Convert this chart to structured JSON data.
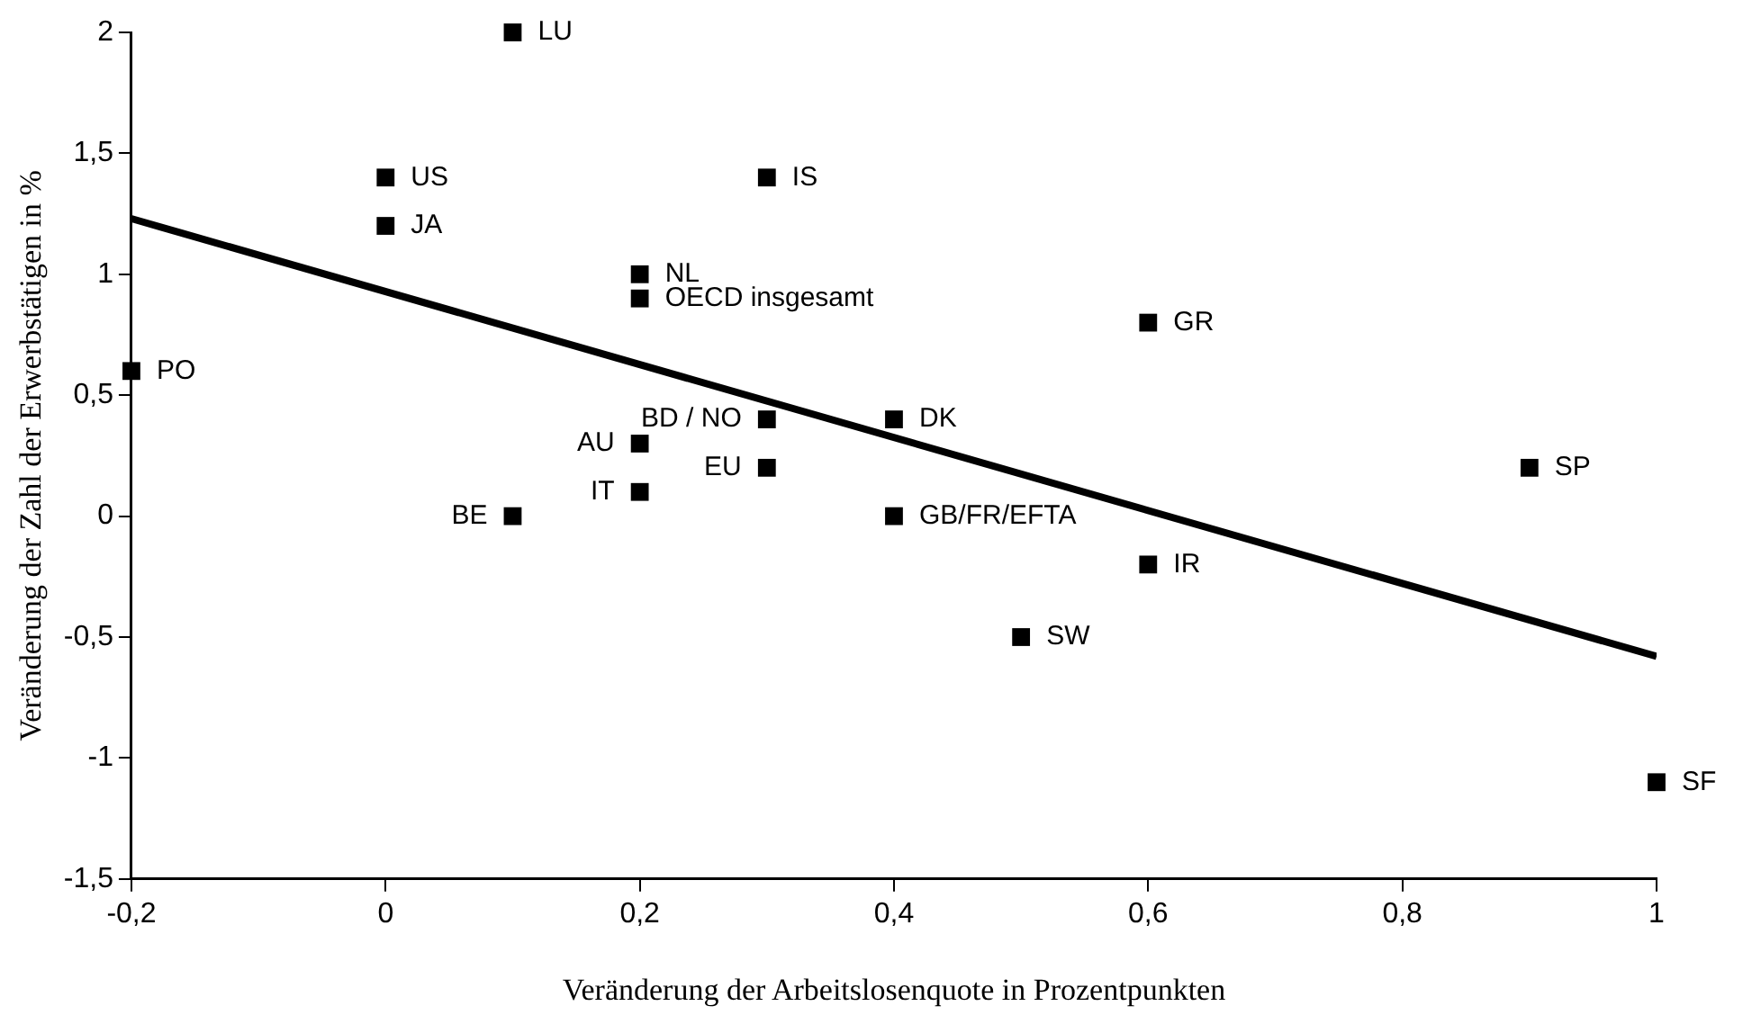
{
  "chart_data": {
    "type": "scatter",
    "xlabel": "Veränderung der Arbeitslosenquote in Prozentpunkten",
    "ylabel": "Veränderung der Zahl der Erwerbstätigen in %",
    "series": [
      {
        "color": "#000000",
        "marker": "square",
        "x": [
          -0.2,
          0,
          0,
          0.1,
          0.1,
          0.2,
          0.2,
          0.2,
          0.2,
          0.3,
          0.3,
          0.3,
          0.4,
          0.4,
          0.6,
          0.6,
          0.5,
          0.9,
          1.0
        ],
        "values": [
          0.6,
          1.4,
          1.2,
          2,
          0,
          0.3,
          0.1,
          1.0,
          0.9,
          0.4,
          0.2,
          1.4,
          0.4,
          0,
          0.8,
          -0.2,
          -0.5,
          0.2,
          -1.1
        ]
      },
      {
        "type": "line",
        "color": "#000000",
        "marker": "none",
        "line_style": "solid",
        "x": [
          -0.2,
          1
        ],
        "values": [
          1.23,
          -0.58
        ]
      }
    ],
    "annotations": [
      {
        "text": "PO",
        "x": -0.2,
        "y": 0.6
      },
      {
        "text": "US",
        "x": 0,
        "y": 1.4
      },
      {
        "text": "JA",
        "x": 0,
        "y": 1.2
      },
      {
        "text": "LU",
        "x": 0.1,
        "y": 2
      },
      {
        "text": "BE",
        "x": 0.1,
        "y": 0
      },
      {
        "text": "AU",
        "x": 0.2,
        "y": 0.3
      },
      {
        "text": "IT",
        "x": 0.2,
        "y": 0.1
      },
      {
        "text": "NL",
        "x": 0.2,
        "y": 1.0
      },
      {
        "text": "OECD insgesamt",
        "x": 0.2,
        "y": 0.9
      },
      {
        "text": "BD / NO",
        "x": 0.3,
        "y": 0.4
      },
      {
        "text": "EU",
        "x": 0.3,
        "y": 0.2
      },
      {
        "text": "IS",
        "x": 0.3,
        "y": 1.4
      },
      {
        "text": "DK",
        "x": 0.4,
        "y": 0.4
      },
      {
        "text": "GB/FR/EFTA",
        "x": 0.4,
        "y": 0
      },
      {
        "text": "GR",
        "x": 0.6,
        "y": 0.8
      },
      {
        "text": "IR",
        "x": 0.6,
        "y": -0.2
      },
      {
        "text": "SW",
        "x": 0.5,
        "y": -0.5
      },
      {
        "text": "SP",
        "x": 0.9,
        "y": 0.2
      },
      {
        "text": "SF",
        "x": 1.0,
        "y": -1.1
      }
    ],
    "xlim": [
      -0.2,
      1
    ],
    "xticks": [
      {
        "value": -0.2,
        "label": "-0,2"
      },
      0,
      {
        "value": 0.2,
        "label": "0,2"
      },
      {
        "value": 0.4,
        "label": "0,4"
      },
      {
        "value": 0.6,
        "label": "0,6"
      },
      {
        "value": 0.8,
        "label": "0,8"
      },
      1
    ],
    "ylim": [
      -1.5,
      2
    ],
    "yticks": [
      {
        "value": -1.5,
        "label": "-1,5"
      },
      -1,
      {
        "value": -0.5,
        "label": "-0,5"
      },
      0,
      {
        "value": 0.5,
        "label": "0,5"
      },
      1,
      {
        "value": 1.5,
        "label": "1,5"
      },
      2
    ],
    "grid": false,
    "legend": false
  }
}
